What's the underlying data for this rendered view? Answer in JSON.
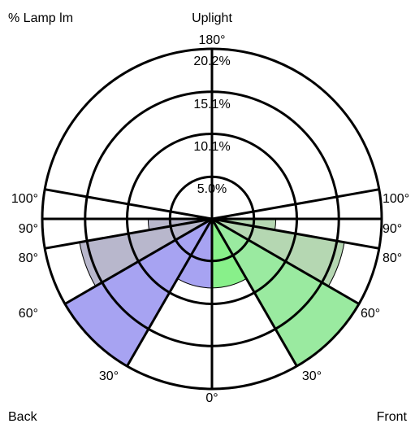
{
  "chart_data": {
    "type": "polar",
    "unit_label": "% Lamp lm",
    "top_label": "Uplight",
    "bottom_left_label": "Back",
    "bottom_right_label": "Front",
    "rings": [
      {
        "value": 5.0,
        "label": "5.0%"
      },
      {
        "value": 10.1,
        "label": "10.1%"
      },
      {
        "value": 15.1,
        "label": "15.1%"
      },
      {
        "value": 20.2,
        "label": "20.2%"
      }
    ],
    "angle_labels": {
      "top": "180°",
      "bottom": "0°",
      "left": [
        "30°",
        "60°",
        "80°",
        "90°",
        "100°"
      ],
      "right": [
        "30°",
        "60°",
        "80°",
        "90°",
        "100°"
      ]
    },
    "sector_angles_deg": [
      0,
      30,
      60,
      80,
      90,
      100,
      180
    ],
    "series": [
      {
        "name": "Back",
        "side": "left",
        "sectors": [
          {
            "from": 0,
            "to": 30,
            "value": 8.2,
            "color": "#a7a3f2"
          },
          {
            "from": 30,
            "to": 60,
            "value": 22.0,
            "color": "#a7a3f2"
          },
          {
            "from": 60,
            "to": 80,
            "value": 16.0,
            "color": "#b8b7cc"
          },
          {
            "from": 80,
            "to": 90,
            "value": 7.6,
            "color": "#b8b7cc"
          }
        ]
      },
      {
        "name": "Front",
        "side": "right",
        "sectors": [
          {
            "from": 0,
            "to": 30,
            "value": 8.2,
            "color": "#88f08a"
          },
          {
            "from": 30,
            "to": 60,
            "value": 22.0,
            "color": "#9aeaa0"
          },
          {
            "from": 60,
            "to": 80,
            "value": 16.0,
            "color": "#b5d7b2"
          },
          {
            "from": 80,
            "to": 90,
            "value": 7.6,
            "color": "#b5d7b2"
          }
        ]
      }
    ],
    "colors": {
      "back_main": "#a7a3f2",
      "back_side": "#b8b7cc",
      "front_main": "#88f08a",
      "front_mid": "#9aeaa0",
      "front_side": "#b5d7b2"
    }
  }
}
